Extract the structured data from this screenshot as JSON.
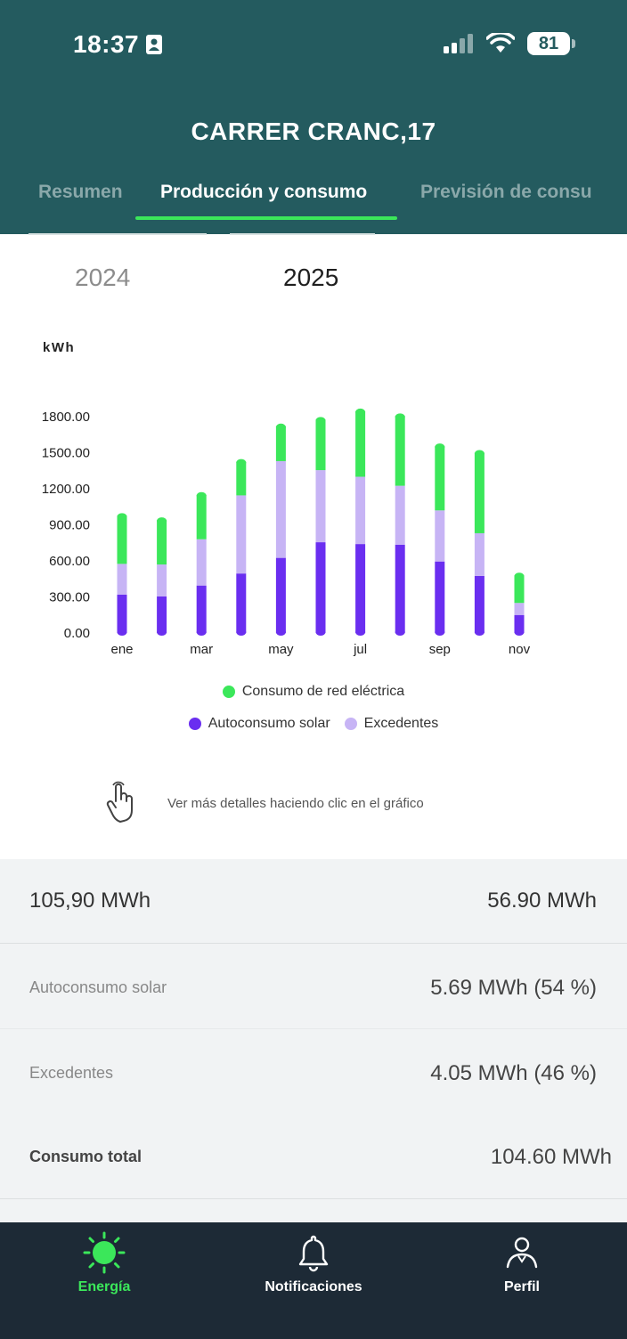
{
  "status": {
    "time": "18:37",
    "battery": "81"
  },
  "header": {
    "title": "CARRER CRANC,17"
  },
  "tabs": [
    {
      "label": "Resumen"
    },
    {
      "label": "Producción y consumo"
    },
    {
      "label": "Previsión de consu"
    }
  ],
  "years": {
    "prev": "2024",
    "current": "2025"
  },
  "chart_data": {
    "type": "bar",
    "stacked": true,
    "ylabel": "kWh",
    "ylim": [
      0,
      1800
    ],
    "yticks": [
      "1800.00",
      "1500.00",
      "1200.00",
      "900.00",
      "600.00",
      "300.00",
      "0.00"
    ],
    "ytick_values": [
      1800,
      1500,
      1200,
      900,
      600,
      300,
      0
    ],
    "categories": [
      "ene",
      "feb",
      "mar",
      "abr",
      "may",
      "jun",
      "jul",
      "ago",
      "sep",
      "oct",
      "nov"
    ],
    "xtick_labels": [
      "ene",
      "",
      "mar",
      "",
      "may",
      "",
      "jul",
      "",
      "sep",
      "",
      "nov"
    ],
    "series": [
      {
        "name": "Autoconsumo solar",
        "color": "#6a2ef0",
        "values": [
          320,
          305,
          395,
          495,
          625,
          755,
          740,
          735,
          595,
          475,
          150
        ]
      },
      {
        "name": "Excedentes",
        "color": "#c7b4f5",
        "values": [
          255,
          265,
          385,
          650,
          805,
          600,
          560,
          490,
          425,
          355,
          100
        ]
      },
      {
        "name": "Consumo de red eléctrica",
        "color": "#3be75a",
        "values": [
          400,
          370,
          370,
          280,
          290,
          420,
          545,
          580,
          535,
          670,
          230
        ]
      }
    ],
    "legend_position": "bottom",
    "grid": false
  },
  "legend": {
    "grid": "Consumo de red eléctrica",
    "solar": "Autoconsumo solar",
    "surplus": "Excedentes"
  },
  "hint": {
    "text": "Ver más detalles haciendo clic en el gráfico"
  },
  "summary": {
    "row1": {
      "left": "105,90 MWh",
      "right": "56.90 MWh"
    },
    "solar": {
      "label": "Autoconsumo solar",
      "value": "5.69 MWh",
      "pct": "(54 %)"
    },
    "surplus": {
      "label": "Excedentes",
      "value": "4.05 MWh",
      "pct": "(46 %)"
    },
    "total": {
      "label": "Consumo total",
      "value": "104.60 MWh"
    }
  },
  "nav": [
    {
      "label": "Energía",
      "icon": "sun-icon",
      "color": "#3be75a"
    },
    {
      "label": "Notificaciones",
      "icon": "bell-icon",
      "color": "#ffffff"
    },
    {
      "label": "Perfil",
      "icon": "user-icon",
      "color": "#ffffff"
    }
  ]
}
